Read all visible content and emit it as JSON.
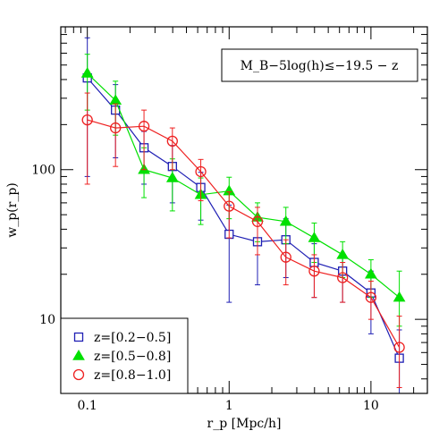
{
  "chart_data": {
    "type": "line",
    "title": "",
    "xlabel": "r_p [Mpc/h]",
    "ylabel": "w_p(r_p)",
    "xscale": "log",
    "yscale": "log",
    "xlim": [
      0.065,
      25
    ],
    "ylim": [
      3.2,
      900
    ],
    "xticklabels": [
      {
        "v": 0.1,
        "label": "0.1"
      },
      {
        "v": 1,
        "label": "1"
      },
      {
        "v": 10,
        "label": "10"
      }
    ],
    "yticklabels": [
      {
        "v": 10,
        "label": "10"
      },
      {
        "v": 100,
        "label": "100"
      }
    ],
    "annotation": {
      "text": "M_B−5log(h)≤−19.5 − z",
      "position": "top-right"
    },
    "legend": {
      "position": "bottom-left"
    },
    "series": [
      {
        "name": "z=[0.2−0.5]",
        "color": "#1f1fb4",
        "marker": "square-open",
        "x": [
          0.1,
          0.158,
          0.251,
          0.398,
          0.631,
          1.0,
          1.585,
          2.512,
          3.981,
          6.31,
          10.0,
          15.85
        ],
        "y": [
          410,
          250,
          140,
          105,
          76,
          37,
          33,
          34,
          24,
          21,
          15,
          5.5
        ],
        "yerr_lo": [
          320,
          130,
          60,
          45,
          30,
          24,
          16,
          15,
          10,
          8,
          7,
          2.5
        ],
        "yerr_hi": [
          350,
          120,
          40,
          40,
          20,
          21,
          15,
          13,
          8,
          6,
          6,
          3
        ]
      },
      {
        "name": "z=[0.5−0.8]",
        "color": "#00e000",
        "marker": "triangle-filled",
        "x": [
          0.1,
          0.158,
          0.251,
          0.398,
          0.631,
          1.0,
          1.585,
          2.512,
          3.981,
          6.31,
          10.0,
          15.85
        ],
        "y": [
          440,
          290,
          100,
          88,
          68,
          72,
          48,
          45,
          35,
          27,
          20,
          14
        ],
        "yerr_lo": [
          190,
          120,
          35,
          35,
          25,
          25,
          15,
          13,
          11,
          8,
          6,
          5
        ],
        "yerr_hi": [
          150,
          100,
          40,
          30,
          20,
          17,
          12,
          11,
          9,
          6,
          5,
          7
        ]
      },
      {
        "name": "z=[0.8−1.0]",
        "color": "#ee2020",
        "marker": "circle-open",
        "x": [
          0.1,
          0.158,
          0.251,
          0.398,
          0.631,
          1.0,
          1.585,
          2.512,
          3.981,
          6.31,
          10.0,
          15.85
        ],
        "y": [
          215,
          190,
          195,
          155,
          97,
          57,
          45,
          26,
          21,
          19,
          14,
          6.5
        ],
        "yerr_lo": [
          135,
          85,
          95,
          55,
          35,
          22,
          18,
          9,
          7,
          6,
          4,
          3
        ],
        "yerr_hi": [
          110,
          85,
          55,
          35,
          20,
          14,
          11,
          8,
          6,
          5,
          4,
          4
        ]
      }
    ]
  }
}
